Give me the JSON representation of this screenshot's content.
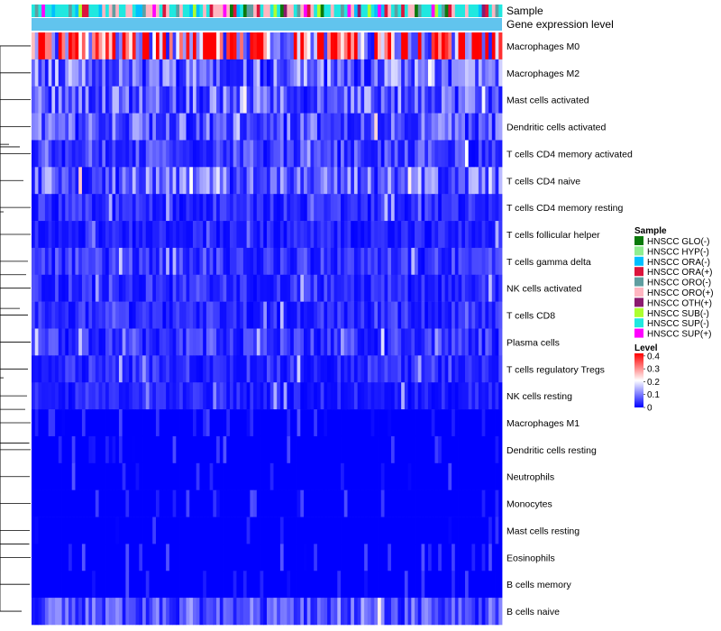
{
  "chart_data": {
    "type": "heatmap",
    "annotation_labels": [
      "Sample",
      "Gene expression level"
    ],
    "rows": [
      "Macrophages M0",
      "Macrophages M2",
      "Mast cells activated",
      "Dendritic cells activated",
      "T cells CD4 memory activated",
      "T cells CD4 naive",
      "T cells CD4 memory resting",
      "T cells follicular helper",
      "T cells gamma delta",
      "NK cells activated",
      "T cells CD8",
      "Plasma cells",
      "T cells regulatory  Tregs",
      "NK cells resting",
      "Macrophages M1",
      "Dendritic cells resting",
      "Neutrophils",
      "Monocytes",
      "Mast cells resting",
      "Eosinophils",
      "B cells memory",
      "B cells naive"
    ],
    "row_mean_level": [
      0.33,
      0.1,
      0.09,
      0.08,
      0.06,
      0.09,
      0.04,
      0.03,
      0.05,
      0.04,
      0.04,
      0.05,
      0.04,
      0.03,
      0.01,
      0.01,
      0.01,
      0.01,
      0.01,
      0.01,
      0.01,
      0.07
    ],
    "n_samples": 140,
    "sample_legend": {
      "title": "Sample",
      "items": [
        {
          "label": "HNSCC GLO(-)",
          "color": "#0b7a0b"
        },
        {
          "label": "HNSCC HYP(-)",
          "color": "#90ee90"
        },
        {
          "label": "HNSCC ORA(-)",
          "color": "#00bfff"
        },
        {
          "label": "HNSCC ORA(+)",
          "color": "#dc143c"
        },
        {
          "label": "HNSCC ORO(-)",
          "color": "#5f9ea0"
        },
        {
          "label": "HNSCC ORO(+)",
          "color": "#ffb6c1"
        },
        {
          "label": "HNSCC OTH(+)",
          "color": "#8b1a6e"
        },
        {
          "label": "HNSCC SUB(-)",
          "color": "#adff2f"
        },
        {
          "label": "HNSCC SUP(-)",
          "color": "#20e8e0"
        },
        {
          "label": "HNSCC SUP(+)",
          "color": "#ff00ff"
        }
      ]
    },
    "level_legend": {
      "title": "Level",
      "ticks": [
        "0.4",
        "0.3",
        "0.2",
        "0.1",
        "0"
      ],
      "tick_values": [
        0.4,
        0.3,
        0.2,
        0.1,
        0
      ],
      "range": [
        0,
        0.42
      ],
      "colors": [
        "#0000ff",
        "#ffffff",
        "#ff0000"
      ]
    },
    "gene_expression_bar_color": "#61c4ee"
  }
}
